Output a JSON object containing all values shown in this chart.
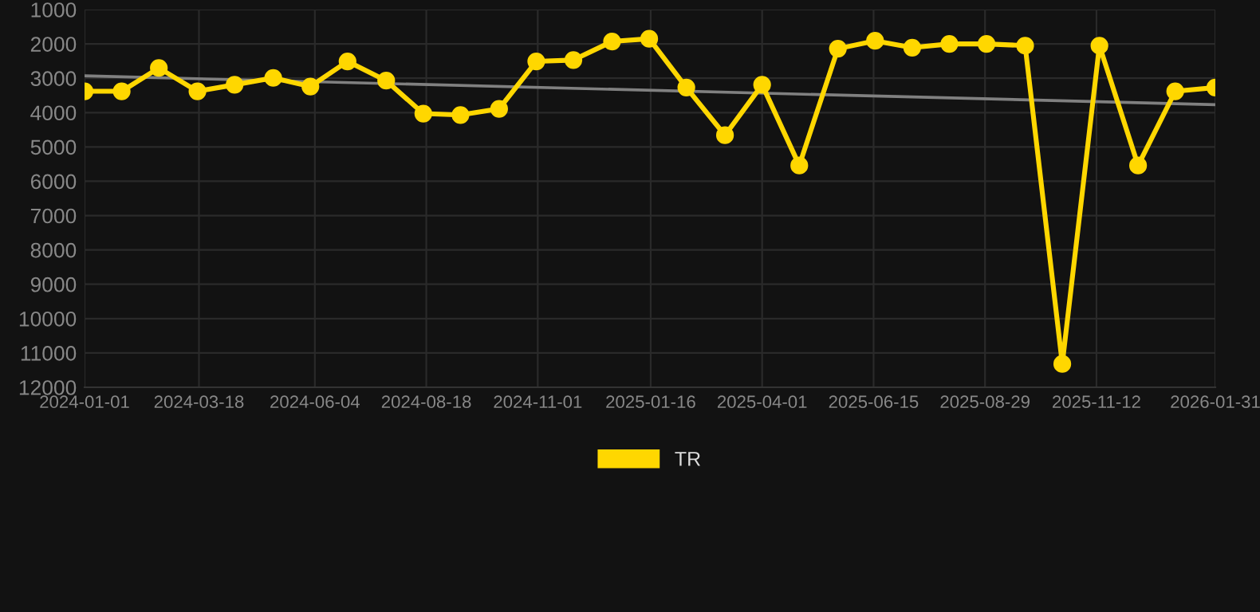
{
  "chart_data": {
    "type": "line",
    "x": [
      "2024-01-01",
      "2024-01-26",
      "2024-02-20",
      "2024-03-17",
      "2024-04-11",
      "2024-05-07",
      "2024-06-01",
      "2024-06-26",
      "2024-07-22",
      "2024-08-16",
      "2024-09-10",
      "2024-10-06",
      "2024-10-31",
      "2024-11-25",
      "2024-12-21",
      "2025-01-15",
      "2025-02-09",
      "2025-03-07",
      "2025-04-01",
      "2025-04-26",
      "2025-05-22",
      "2025-06-16",
      "2025-07-11",
      "2025-08-05",
      "2025-08-30",
      "2025-09-25",
      "2025-10-20",
      "2025-11-14",
      "2025-12-10",
      "2026-01-04",
      "2026-01-31"
    ],
    "series": [
      {
        "name": "TR",
        "color": "#ffd700",
        "marker": "circle",
        "values": [
          3380,
          3380,
          2700,
          3380,
          3190,
          2990,
          3240,
          2510,
          3070,
          4030,
          4070,
          3890,
          2510,
          2470,
          1930,
          1850,
          3270,
          4660,
          3190,
          5540,
          2140,
          1910,
          2110,
          2000,
          2000,
          2050,
          11320,
          2050,
          5540,
          3380,
          3270
        ]
      },
      {
        "type": "line",
        "color": "#808080",
        "marker": "none",
        "x": [
          "2024-01-01",
          "2026-01-31"
        ],
        "values": [
          2930,
          3770
        ]
      }
    ],
    "ylim": [
      12000,
      1000
    ],
    "yticks": [
      1000,
      2000,
      3000,
      4000,
      5000,
      6000,
      7000,
      8000,
      9000,
      10000,
      11000,
      12000
    ],
    "xlim": [
      "2024-01-01",
      "2026-01-31"
    ],
    "xticks": [
      "2024-01-01",
      "2024-03-18",
      "2024-06-04",
      "2024-08-18",
      "2024-11-01",
      "2025-01-16",
      "2025-04-01",
      "2025-06-15",
      "2025-08-29",
      "2025-11-12",
      "2026-01-31"
    ],
    "grid": true,
    "legend": "bottom"
  }
}
